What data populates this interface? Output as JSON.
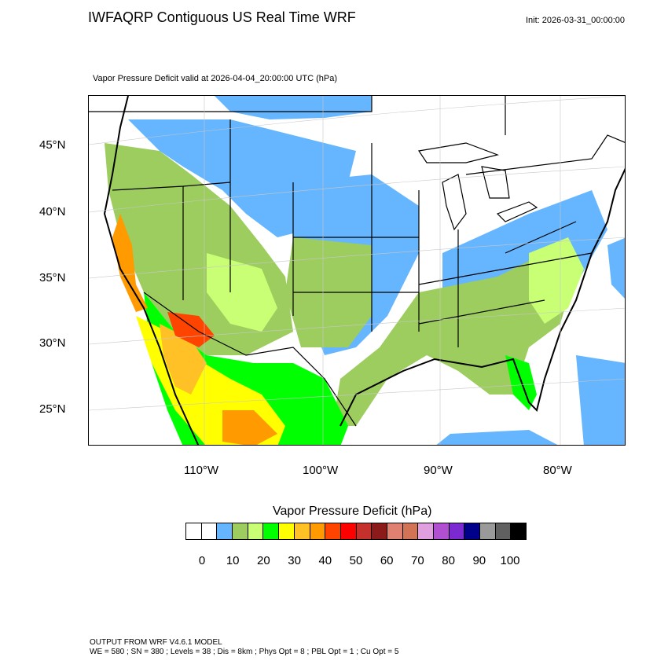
{
  "header": {
    "title": "IWFAQRP Contiguous US Real Time WRF",
    "init": "Init: 2026-03-31_00:00:00",
    "subtitle": "Vapor Pressure Deficit valid at 2026-04-04_20:00:00 UTC   (hPa)"
  },
  "map": {
    "lat_labels": [
      "45°N",
      "40°N",
      "35°N",
      "30°N",
      "25°N"
    ],
    "lon_labels": [
      "110°W",
      "100°W",
      "90°W",
      "80°W"
    ]
  },
  "legend": {
    "title": "Vapor Pressure Deficit  (hPa)",
    "colors": [
      "#ffffff",
      "#ffffff",
      "#66b5ff",
      "#9ccd5e",
      "#c8ff74",
      "#00ff00",
      "#ffff00",
      "#ffc125",
      "#ff9a00",
      "#ff4400",
      "#ff0000",
      "#c4302b",
      "#8b1a1a",
      "#e08070",
      "#d27355",
      "#e0a0e0",
      "#b050d0",
      "#7a2ad0",
      "#00008b",
      "#9a9a9a",
      "#606060",
      "#000000"
    ],
    "labels": [
      "0",
      "10",
      "20",
      "30",
      "40",
      "50",
      "60",
      "70",
      "80",
      "90",
      "100"
    ]
  },
  "footer": {
    "line1": "OUTPUT FROM WRF V4.6.1 MODEL",
    "line2": "WE = 580 ; SN = 380 ; Levels = 38 ; Dis = 8km ; Phys Opt = 8 ; PBL Opt = 1 ; Cu Opt = 5"
  }
}
